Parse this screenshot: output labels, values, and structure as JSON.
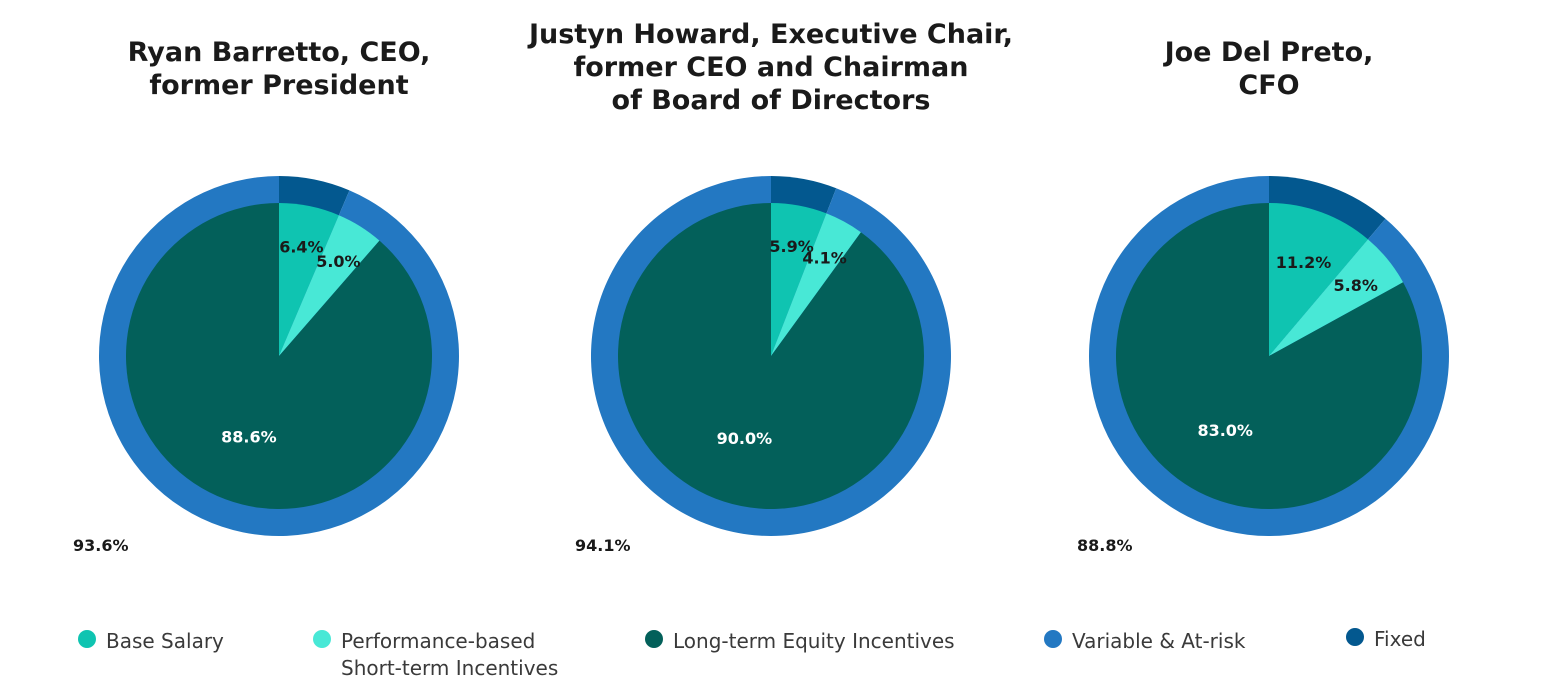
{
  "colors": {
    "base_salary": "#0fc4b1",
    "performance_sti": "#48e8d6",
    "long_term_equity": "#03605a",
    "variable_at_risk": "#2378c2",
    "fixed": "#03588f"
  },
  "chart_data": [
    {
      "type": "pie",
      "title": "Ryan Barretto, CEO,\nformer President",
      "inner": [
        {
          "name": "Base Salary",
          "value": 6.4,
          "label": "6.4%"
        },
        {
          "name": "Performance-based Short-term Incentives",
          "value": 5.0,
          "label": "5.0%"
        },
        {
          "name": "Long-term Equity Incentives",
          "value": 88.6,
          "label": "88.6%"
        }
      ],
      "outer": [
        {
          "name": "Fixed",
          "value": 6.4
        },
        {
          "name": "Variable & At-risk",
          "value": 93.6,
          "label": "93.6%"
        }
      ]
    },
    {
      "type": "pie",
      "title": "Justyn Howard, Executive Chair,\nformer CEO and Chairman\nof Board of Directors",
      "inner": [
        {
          "name": "Base Salary",
          "value": 5.9,
          "label": "5.9%"
        },
        {
          "name": "Performance-based Short-term Incentives",
          "value": 4.1,
          "label": "4.1%"
        },
        {
          "name": "Long-term Equity Incentives",
          "value": 90.0,
          "label": "90.0%"
        }
      ],
      "outer": [
        {
          "name": "Fixed",
          "value": 5.9
        },
        {
          "name": "Variable & At-risk",
          "value": 94.1,
          "label": "94.1%"
        }
      ]
    },
    {
      "type": "pie",
      "title": "Joe Del Preto,\nCFO",
      "inner": [
        {
          "name": "Base Salary",
          "value": 11.2,
          "label": "11.2%"
        },
        {
          "name": "Performance-based Short-term Incentives",
          "value": 5.8,
          "label": "5.8%"
        },
        {
          "name": "Long-term Equity Incentives",
          "value": 83.0,
          "label": "83.0%"
        }
      ],
      "outer": [
        {
          "name": "Fixed",
          "value": 11.2
        },
        {
          "name": "Variable & At-risk",
          "value": 88.8,
          "label": "88.8%"
        }
      ]
    }
  ],
  "legend": [
    {
      "label": "Base Salary",
      "color_key": "base_salary"
    },
    {
      "label": "Performance-based\nShort-term Incentives",
      "color_key": "performance_sti"
    },
    {
      "label": "Long-term Equity Incentives",
      "color_key": "long_term_equity"
    },
    {
      "label": "Variable & At-risk",
      "color_key": "variable_at_risk"
    },
    {
      "label": "Fixed",
      "color_key": "fixed"
    }
  ]
}
